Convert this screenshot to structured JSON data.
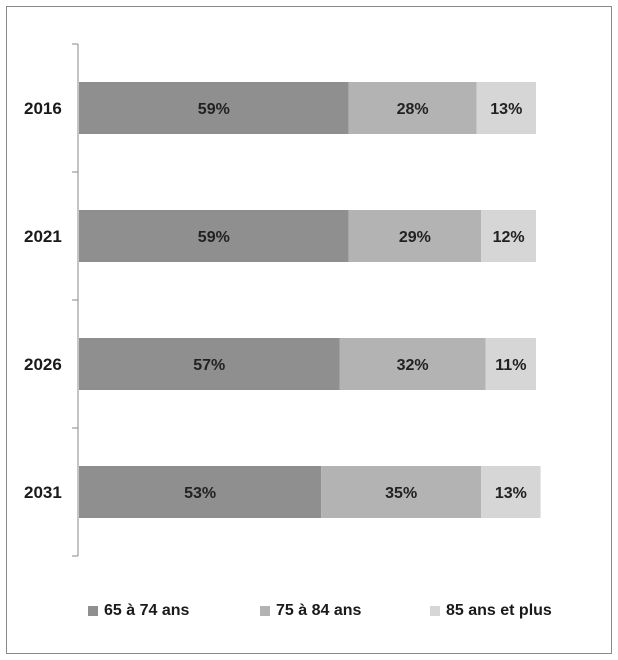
{
  "chart_data": {
    "type": "bar",
    "orientation": "horizontal",
    "stacked": true,
    "categories": [
      "2016",
      "2021",
      "2026",
      "2031"
    ],
    "series": [
      {
        "name": "65 à 74 ans",
        "values": [
          59,
          59,
          57,
          53
        ],
        "labels": [
          "59%",
          "59%",
          "57%",
          "53%"
        ],
        "color": "#8f8f8f"
      },
      {
        "name": "75 à 84 ans",
        "values": [
          28,
          29,
          32,
          35
        ],
        "labels": [
          "28%",
          "29%",
          "32%",
          "35%"
        ],
        "color": "#b3b3b3"
      },
      {
        "name": "85 ans et plus",
        "values": [
          13,
          12,
          11,
          13
        ],
        "labels": [
          "13%",
          "12%",
          "11%",
          "13%"
        ],
        "color": "#d6d6d6"
      }
    ],
    "xlim": [
      0,
      100
    ],
    "grid": false,
    "legend_position": "bottom"
  }
}
